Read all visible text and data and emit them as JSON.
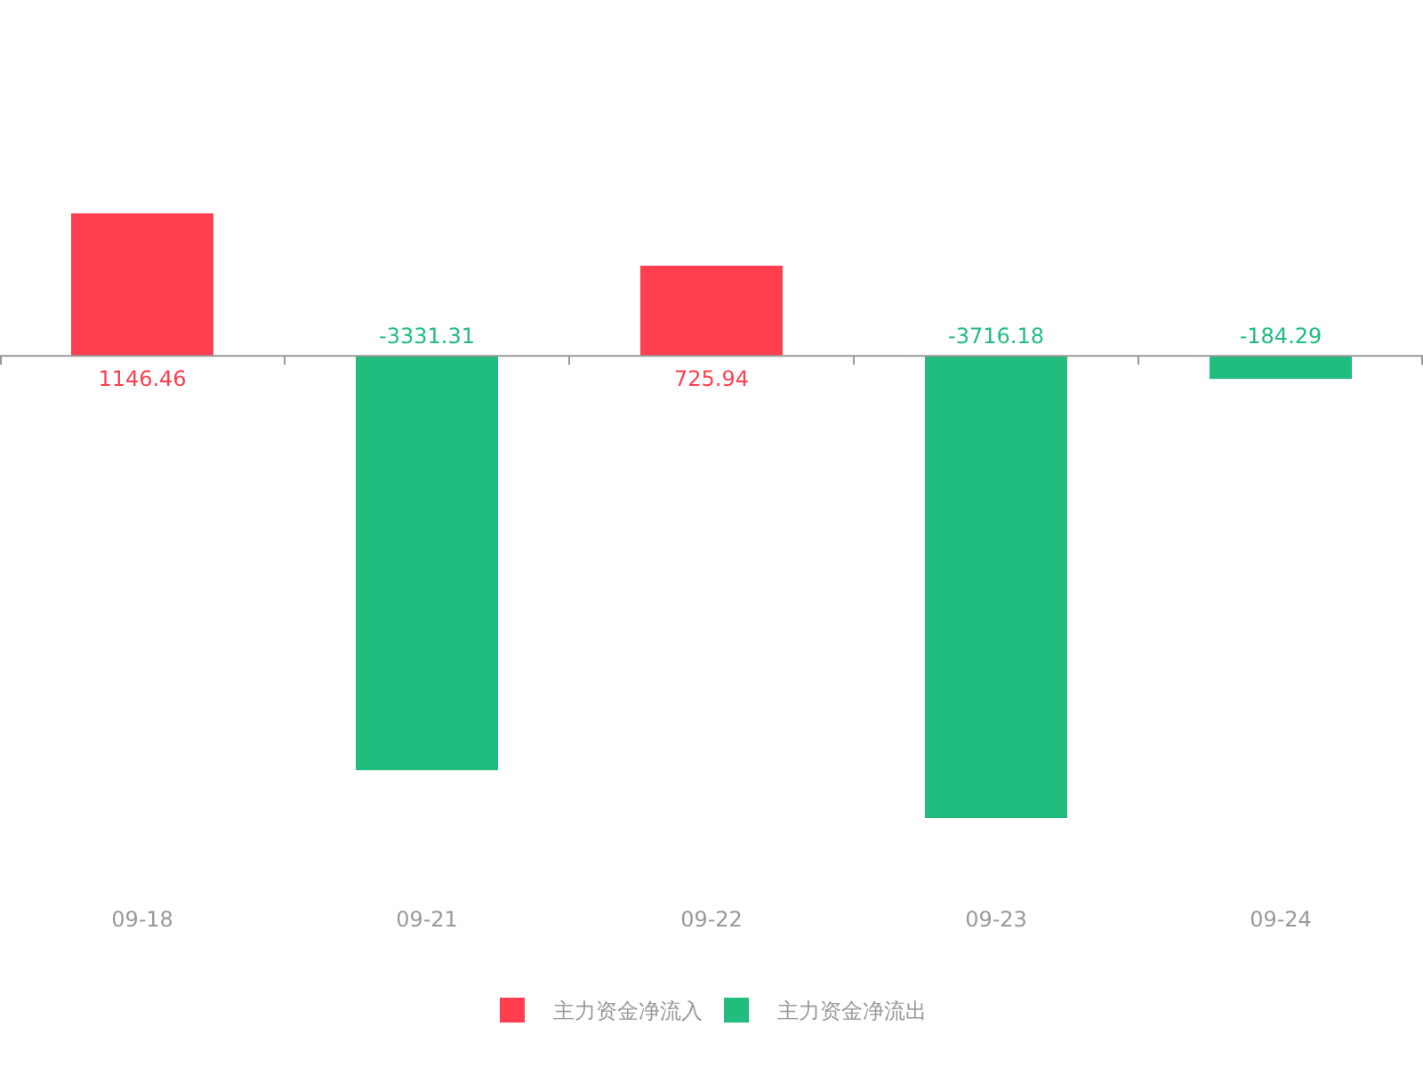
{
  "chart_data": {
    "type": "bar",
    "categories": [
      "09-18",
      "09-21",
      "09-22",
      "09-23",
      "09-24"
    ],
    "series": [
      {
        "name": "主力资金净流入",
        "color": "#ff3f4f",
        "values": [
          1146.46,
          null,
          725.94,
          null,
          null
        ]
      },
      {
        "name": "主力资金净流出",
        "color": "#21bd7f",
        "values": [
          null,
          -3331.31,
          null,
          -3716.18,
          -184.29
        ]
      }
    ],
    "stacked": true,
    "data_labels": true,
    "legend": "bottom"
  }
}
